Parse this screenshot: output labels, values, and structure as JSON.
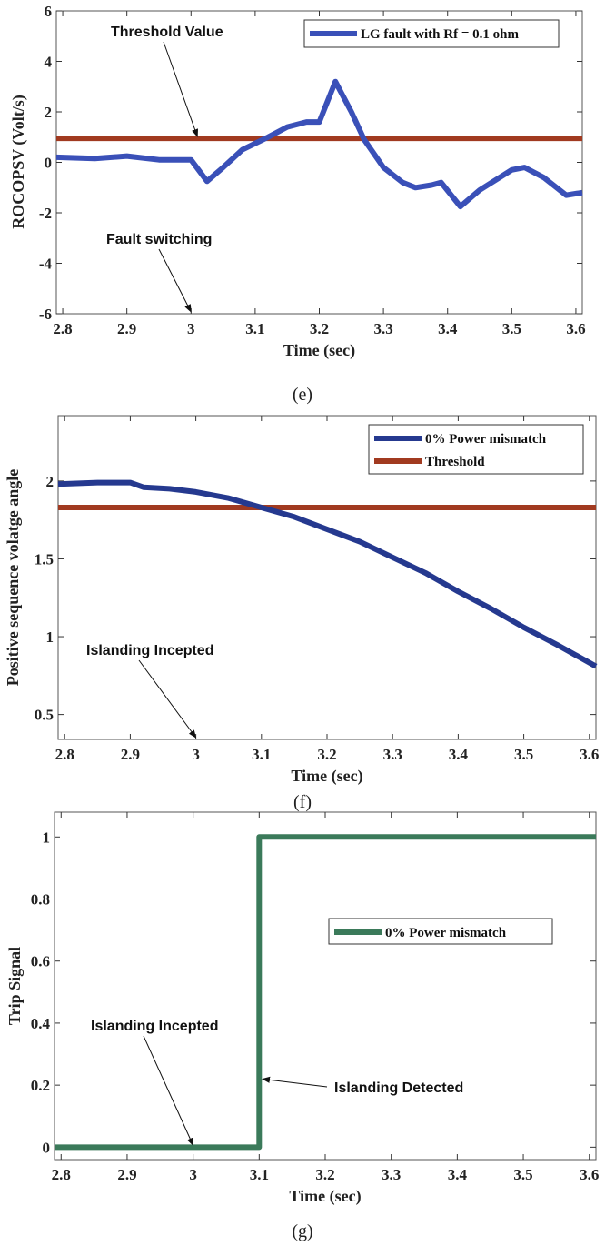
{
  "chart_data": [
    {
      "type": "line",
      "caption": "(e)",
      "xlabel": "Time (sec)",
      "ylabel": "ROCOPSV (Volt/s)",
      "xlim": [
        2.79,
        3.61
      ],
      "ylim": [
        -6,
        6
      ],
      "xticks": [
        2.8,
        2.9,
        3,
        3.1,
        3.2,
        3.3,
        3.4,
        3.5,
        3.6
      ],
      "xtick_labels": [
        "2.8",
        "2.9",
        "3",
        "3.1",
        "3.2",
        "3.3",
        "3.4",
        "3.5",
        "3.6"
      ],
      "yticks": [
        -6,
        -4,
        -2,
        0,
        2,
        4,
        6
      ],
      "ytick_labels": [
        "-6",
        "-4",
        "-2",
        "0",
        "2",
        "4",
        "6"
      ],
      "grid": false,
      "legend_position": "top-right",
      "series": [
        {
          "name": "LG fault with Rf = 0.1 ohm",
          "color": "#3a50b8",
          "in_legend": true,
          "x": [
            2.79,
            2.85,
            2.9,
            2.95,
            3.0,
            3.025,
            3.05,
            3.08,
            3.12,
            3.15,
            3.18,
            3.2,
            3.225,
            3.25,
            3.27,
            3.3,
            3.33,
            3.35,
            3.375,
            3.39,
            3.42,
            3.45,
            3.5,
            3.52,
            3.55,
            3.585,
            3.61
          ],
          "y": [
            0.2,
            0.15,
            0.25,
            0.1,
            0.1,
            -0.75,
            -0.2,
            0.5,
            1.0,
            1.4,
            1.6,
            1.6,
            3.2,
            2.0,
            0.9,
            -0.2,
            -0.8,
            -1.0,
            -0.9,
            -0.8,
            -1.75,
            -1.1,
            -0.3,
            -0.2,
            -0.6,
            -1.3,
            -1.2
          ]
        },
        {
          "name": "Threshold Value",
          "color": "#a13a20",
          "in_legend": false,
          "x": [
            2.79,
            3.61
          ],
          "y": [
            0.95,
            0.95
          ]
        }
      ],
      "annotations": [
        {
          "text": "Threshold Value",
          "points_to": [
            3.01,
            0.95
          ]
        },
        {
          "text": "Fault switching",
          "points_to": [
            3.0,
            -6
          ]
        }
      ]
    },
    {
      "type": "line",
      "caption": "(f)",
      "xlabel": "Time (sec)",
      "ylabel": "Positive sequence volatge angle",
      "xlim": [
        2.79,
        3.61
      ],
      "ylim": [
        0.34,
        2.42
      ],
      "xticks": [
        2.8,
        2.9,
        3,
        3.1,
        3.2,
        3.3,
        3.4,
        3.5,
        3.6
      ],
      "xtick_labels": [
        "2.8",
        "2.9",
        "3",
        "3.1",
        "3.2",
        "3.3",
        "3.4",
        "3.5",
        "3.6"
      ],
      "yticks": [
        0.5,
        1,
        1.5,
        2
      ],
      "ytick_labels": [
        "0.5",
        "1",
        "1.5",
        "2"
      ],
      "grid": false,
      "legend_position": "top-right",
      "series": [
        {
          "name": "0% Power mismatch",
          "color": "#25398f",
          "in_legend": true,
          "x": [
            2.79,
            2.85,
            2.9,
            2.92,
            2.96,
            3.0,
            3.05,
            3.1,
            3.15,
            3.2,
            3.25,
            3.3,
            3.35,
            3.4,
            3.45,
            3.5,
            3.55,
            3.61
          ],
          "y": [
            1.98,
            1.99,
            1.99,
            1.96,
            1.95,
            1.93,
            1.89,
            1.83,
            1.77,
            1.69,
            1.61,
            1.51,
            1.41,
            1.29,
            1.18,
            1.06,
            0.95,
            0.81
          ]
        },
        {
          "name": "Threshold",
          "color": "#a13a20",
          "in_legend": true,
          "x": [
            2.79,
            3.61
          ],
          "y": [
            1.83,
            1.83
          ]
        }
      ],
      "annotations": [
        {
          "text": "Islanding Incepted",
          "points_to": [
            3.0,
            0.34
          ]
        }
      ]
    },
    {
      "type": "line",
      "caption": "(g)",
      "xlabel": "Time (sec)",
      "ylabel": "Trip Signal",
      "xlim": [
        2.79,
        3.61
      ],
      "ylim": [
        -0.04,
        1.08
      ],
      "xticks": [
        2.8,
        2.9,
        3,
        3.1,
        3.2,
        3.3,
        3.4,
        3.5,
        3.6
      ],
      "xtick_labels": [
        "2.8",
        "2.9",
        "3",
        "3.1",
        "3.2",
        "3.3",
        "3.4",
        "3.5",
        "3.6"
      ],
      "yticks": [
        0,
        0.2,
        0.4,
        0.6,
        0.8,
        1
      ],
      "ytick_labels": [
        "0",
        "0.2",
        "0.4",
        "0.6",
        "0.8",
        "1"
      ],
      "grid": false,
      "legend_position": "center-right",
      "series": [
        {
          "name": "0% Power mismatch",
          "color": "#3b7a5a",
          "in_legend": true,
          "x": [
            2.79,
            3.1,
            3.1,
            3.61
          ],
          "y": [
            0,
            0,
            1,
            1
          ]
        }
      ],
      "annotations": [
        {
          "text": "Islanding Incepted",
          "points_to": [
            3.0,
            0
          ]
        },
        {
          "text": "Islanding Detected",
          "points_to": [
            3.105,
            0.22
          ]
        }
      ]
    }
  ]
}
